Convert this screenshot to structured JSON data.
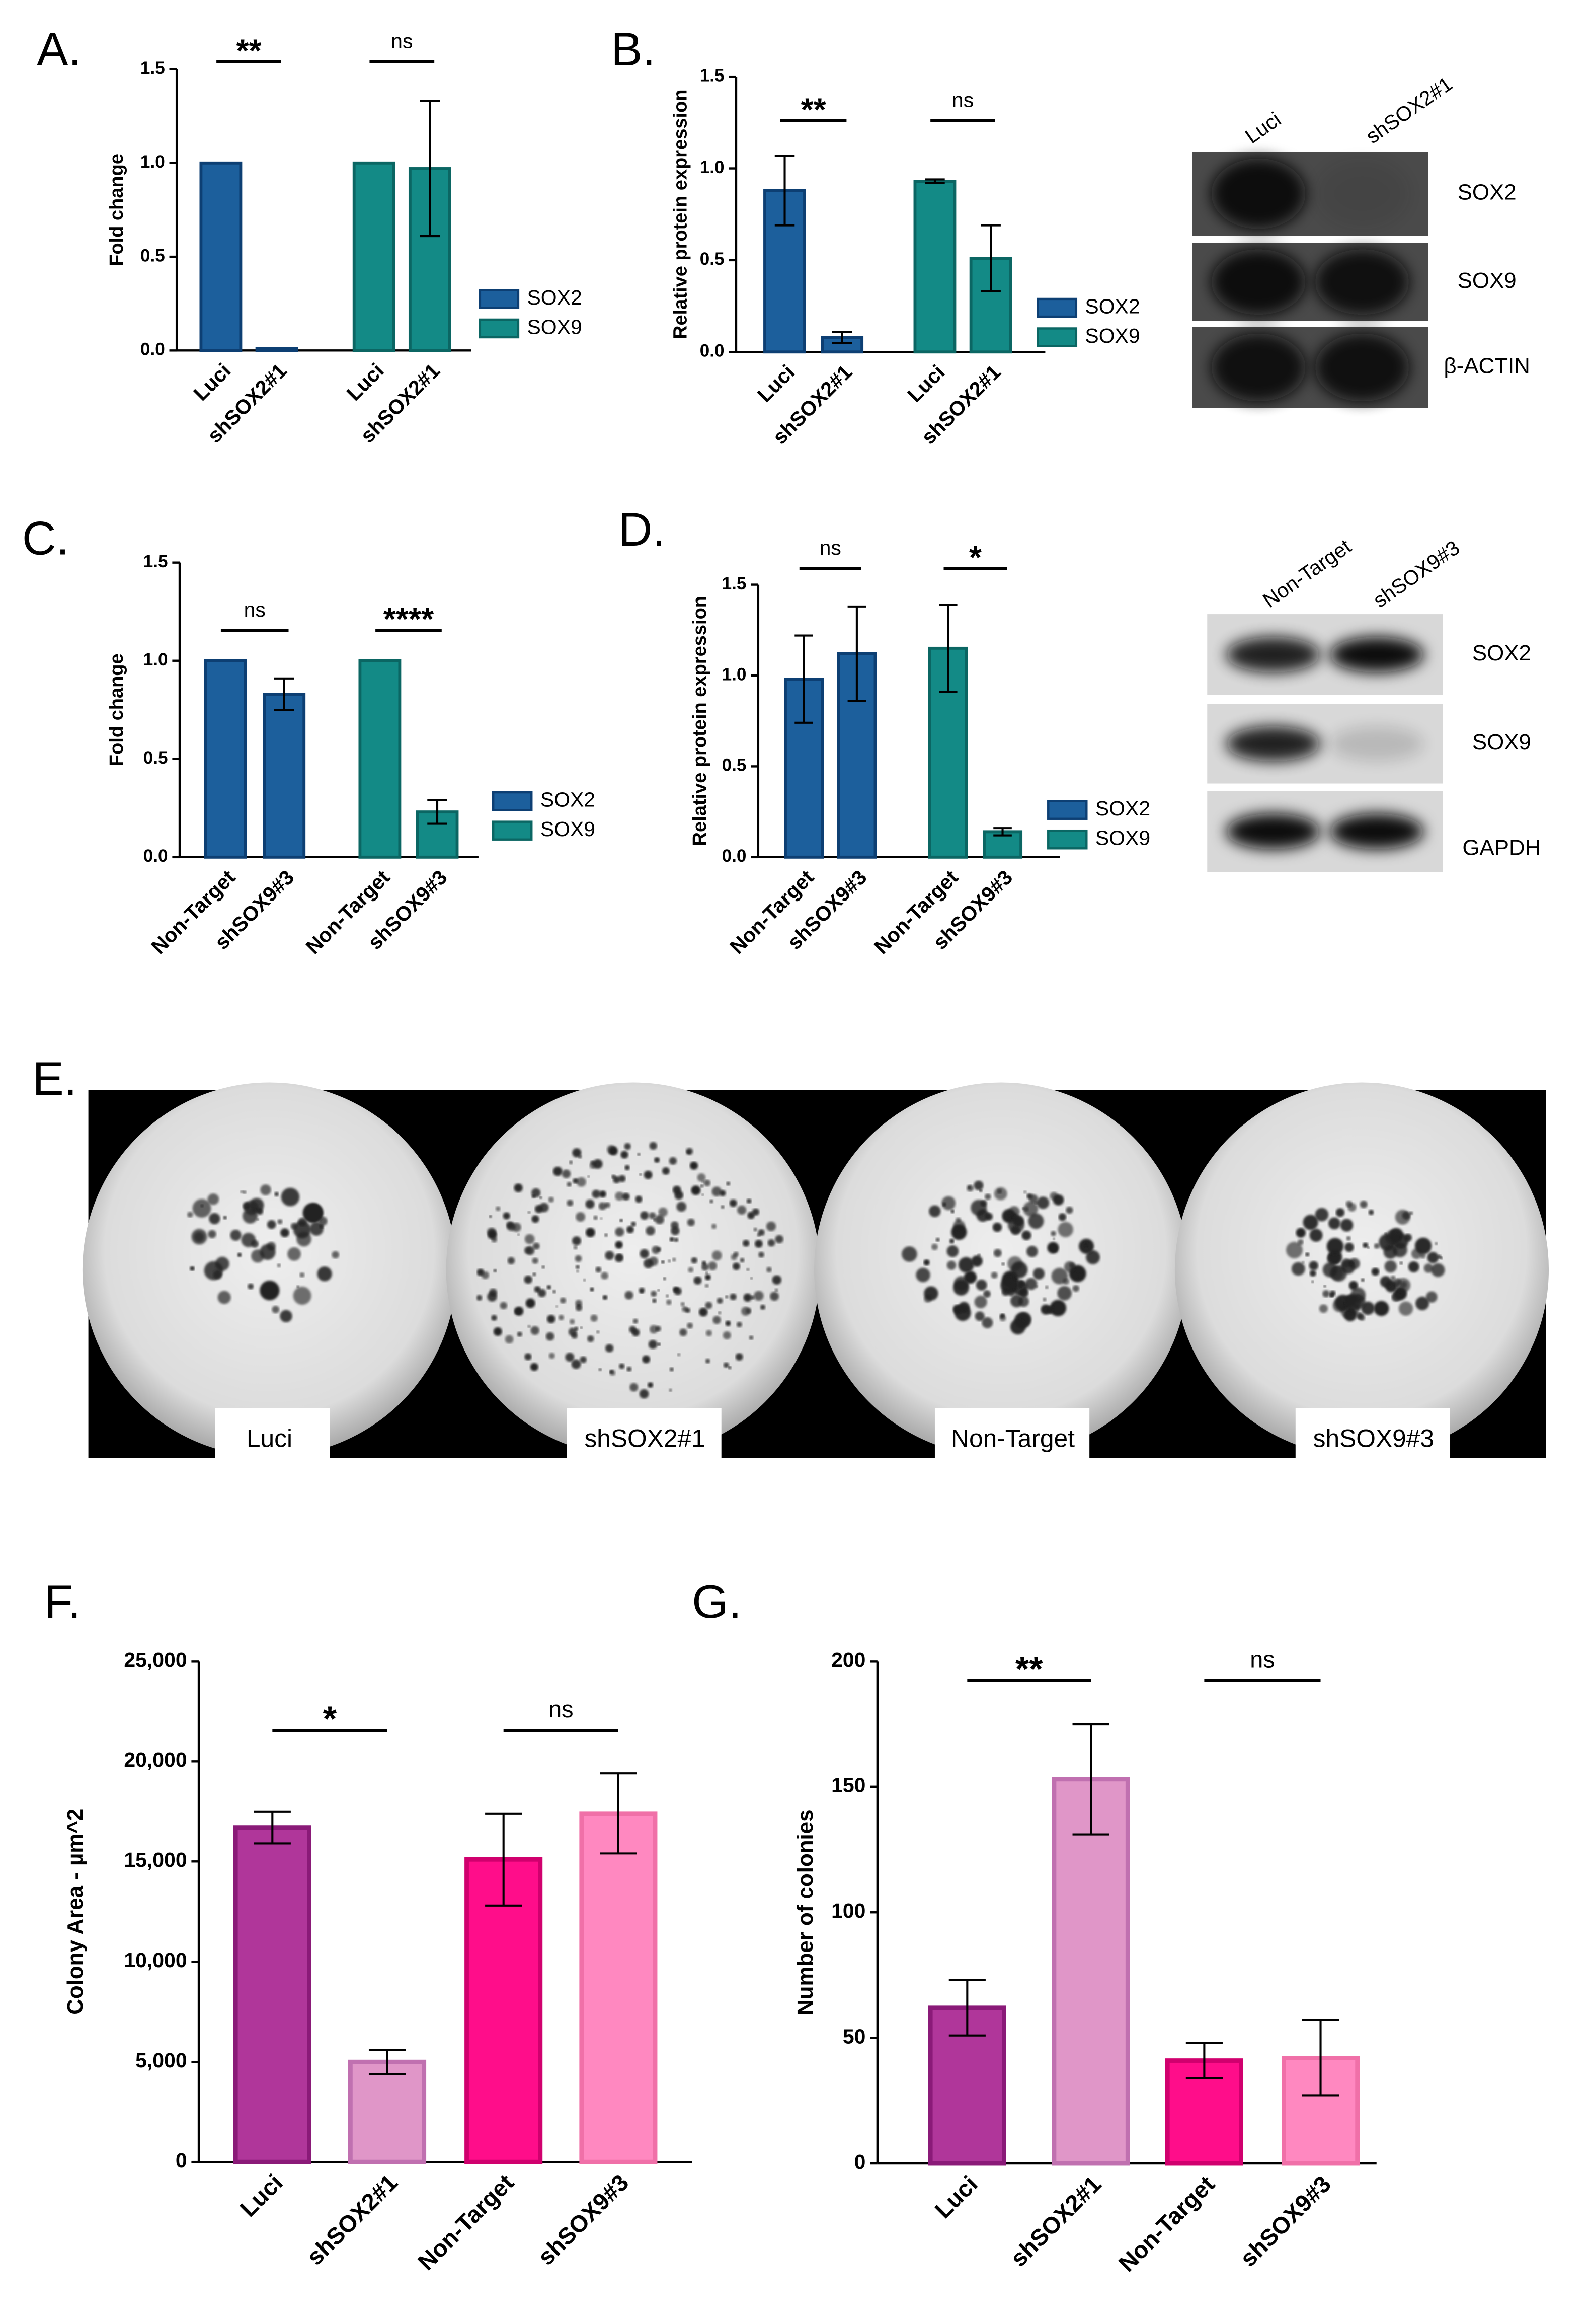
{
  "chart_data": [
    {
      "type": "bar",
      "panel": "A.",
      "ylabel": "Fold change",
      "categories": [
        "Luci",
        "shSOX2#1",
        "Luci",
        "shSOX2#1"
      ],
      "series": [
        {
          "name": "SOX2",
          "color": "#1c5f9c",
          "edgecolor": "#0d3f73",
          "values": [
            1.0,
            0.01,
            null,
            null
          ],
          "errors": [
            null,
            null,
            null,
            null
          ]
        },
        {
          "name": "SOX9",
          "color": "#138a86",
          "edgecolor": "#0b6663",
          "values": [
            null,
            null,
            1.0,
            0.97
          ],
          "errors": [
            null,
            null,
            null,
            0.36
          ]
        }
      ],
      "significance": [
        "**",
        "ns"
      ],
      "ylim": [
        0,
        1.5
      ],
      "yticks": [
        {
          "value": 0,
          "label": "0.0"
        },
        {
          "value": 0.5,
          "label": "0.5"
        },
        {
          "value": 1,
          "label": "1.0"
        },
        {
          "value": 1.5,
          "label": "1.5"
        }
      ]
    },
    {
      "type": "bar",
      "panel": "B.",
      "ylabel": "Relative protein expression",
      "categories": [
        "Luci",
        "shSOX2#1",
        "Luci",
        "shSOX2#1"
      ],
      "series": [
        {
          "name": "SOX2",
          "color": "#1c5f9c",
          "edgecolor": "#0d3f73",
          "values": [
            0.88,
            0.08,
            null,
            null
          ],
          "errors": [
            0.19,
            0.03,
            null,
            null
          ]
        },
        {
          "name": "SOX9",
          "color": "#138a86",
          "edgecolor": "#0b6663",
          "values": [
            null,
            null,
            0.93,
            0.51
          ],
          "errors": [
            null,
            null,
            0.01,
            0.18
          ]
        }
      ],
      "significance": [
        "**",
        "ns"
      ],
      "ylim": [
        0,
        1.5
      ],
      "yticks": [
        {
          "value": 0,
          "label": "0.0"
        },
        {
          "value": 0.5,
          "label": "0.5"
        },
        {
          "value": 1,
          "label": "1.0"
        },
        {
          "value": 1.5,
          "label": "1.5"
        }
      ]
    },
    {
      "type": "bar",
      "panel": "C.",
      "ylabel": "Fold change",
      "categories": [
        "Non-Target",
        "shSOX9#3",
        "Non-Target",
        "shSOX9#3"
      ],
      "series": [
        {
          "name": "SOX2",
          "color": "#1c5f9c",
          "edgecolor": "#0d3f73",
          "values": [
            1.0,
            0.83,
            null,
            null
          ],
          "errors": [
            null,
            0.08,
            null,
            null
          ]
        },
        {
          "name": "SOX9",
          "color": "#138a86",
          "edgecolor": "#0b6663",
          "values": [
            null,
            null,
            1.0,
            0.23
          ],
          "errors": [
            null,
            null,
            null,
            0.06
          ]
        }
      ],
      "significance": [
        "ns",
        "****"
      ],
      "ylim": [
        0,
        1.5
      ],
      "yticks": [
        {
          "value": 0,
          "label": "0.0"
        },
        {
          "value": 0.5,
          "label": "0.5"
        },
        {
          "value": 1,
          "label": "1.0"
        },
        {
          "value": 1.5,
          "label": "1.5"
        }
      ]
    },
    {
      "type": "bar",
      "panel": "D.",
      "ylabel": "Relative protein expression",
      "categories": [
        "Non-Target",
        "shSOX9#3",
        "Non-Target",
        "shSOX9#3"
      ],
      "series": [
        {
          "name": "SOX2",
          "color": "#1c5f9c",
          "edgecolor": "#0d3f73",
          "values": [
            0.98,
            1.12,
            null,
            null
          ],
          "errors": [
            0.24,
            0.26,
            null,
            null
          ]
        },
        {
          "name": "SOX9",
          "color": "#138a86",
          "edgecolor": "#0b6663",
          "values": [
            null,
            null,
            1.15,
            0.14
          ],
          "errors": [
            null,
            null,
            0.24,
            0.02
          ]
        }
      ],
      "significance": [
        "ns",
        "*"
      ],
      "ylim": [
        0,
        1.5
      ],
      "yticks": [
        {
          "value": 0,
          "label": "0.0"
        },
        {
          "value": 0.5,
          "label": "0.5"
        },
        {
          "value": 1,
          "label": "1.0"
        },
        {
          "value": 1.5,
          "label": "1.5"
        }
      ]
    },
    {
      "type": "bar",
      "panel": "F.",
      "ylabel": "Colony Area - µm^2",
      "categories": [
        "Luci",
        "shSOX2#1",
        "Non-Target",
        "shSOX9#3"
      ],
      "values": [
        16700,
        5000,
        15100,
        17400
      ],
      "errors": [
        800,
        600,
        2300,
        2000
      ],
      "colors": [
        "#b0369a",
        "#e096c8",
        "#ff0d8a",
        "#ff88c0"
      ],
      "edgecolors": [
        "#8a1a78",
        "#c070b0",
        "#d0006e",
        "#f070a8"
      ],
      "significance": [
        "*",
        "ns"
      ],
      "ylim": [
        0,
        25000
      ],
      "yticks": [
        0,
        {
          "value": 5000,
          "label": "5,000"
        },
        {
          "value": 10000,
          "label": "10,000"
        },
        {
          "value": 15000,
          "label": "15,000"
        },
        {
          "value": 20000,
          "label": "20,000"
        },
        {
          "value": 25000,
          "label": "25,000"
        }
      ]
    },
    {
      "type": "bar",
      "panel": "G.",
      "ylabel": "Number of colonies",
      "categories": [
        "Luci",
        "shSOX2#1",
        "Non-Target",
        "shSOX9#3"
      ],
      "values": [
        62,
        153,
        41,
        42
      ],
      "errors": [
        11,
        22,
        7,
        15
      ],
      "colors": [
        "#b0369a",
        "#e096c8",
        "#ff0d8a",
        "#ff88c0"
      ],
      "edgecolors": [
        "#8a1a78",
        "#c070b0",
        "#d0006e",
        "#f070a8"
      ],
      "significance": [
        "**",
        "ns"
      ],
      "ylim": [
        0,
        200
      ],
      "yticks": [
        0,
        50,
        100,
        150,
        200
      ]
    }
  ],
  "blots": [
    {
      "lanes": [
        "Luci",
        "shSOX2#1"
      ],
      "bands": [
        "SOX2",
        "SOX9",
        "β-ACTIN"
      ]
    },
    {
      "lanes": [
        "Non-Target",
        "shSOX9#3"
      ],
      "bands": [
        "SOX2",
        "SOX9",
        "GAPDH"
      ]
    }
  ],
  "colony_assay": {
    "panel": "E.",
    "labels": [
      "Luci",
      "shSOX2#1",
      "Non-Target",
      "shSOX9#3"
    ]
  }
}
